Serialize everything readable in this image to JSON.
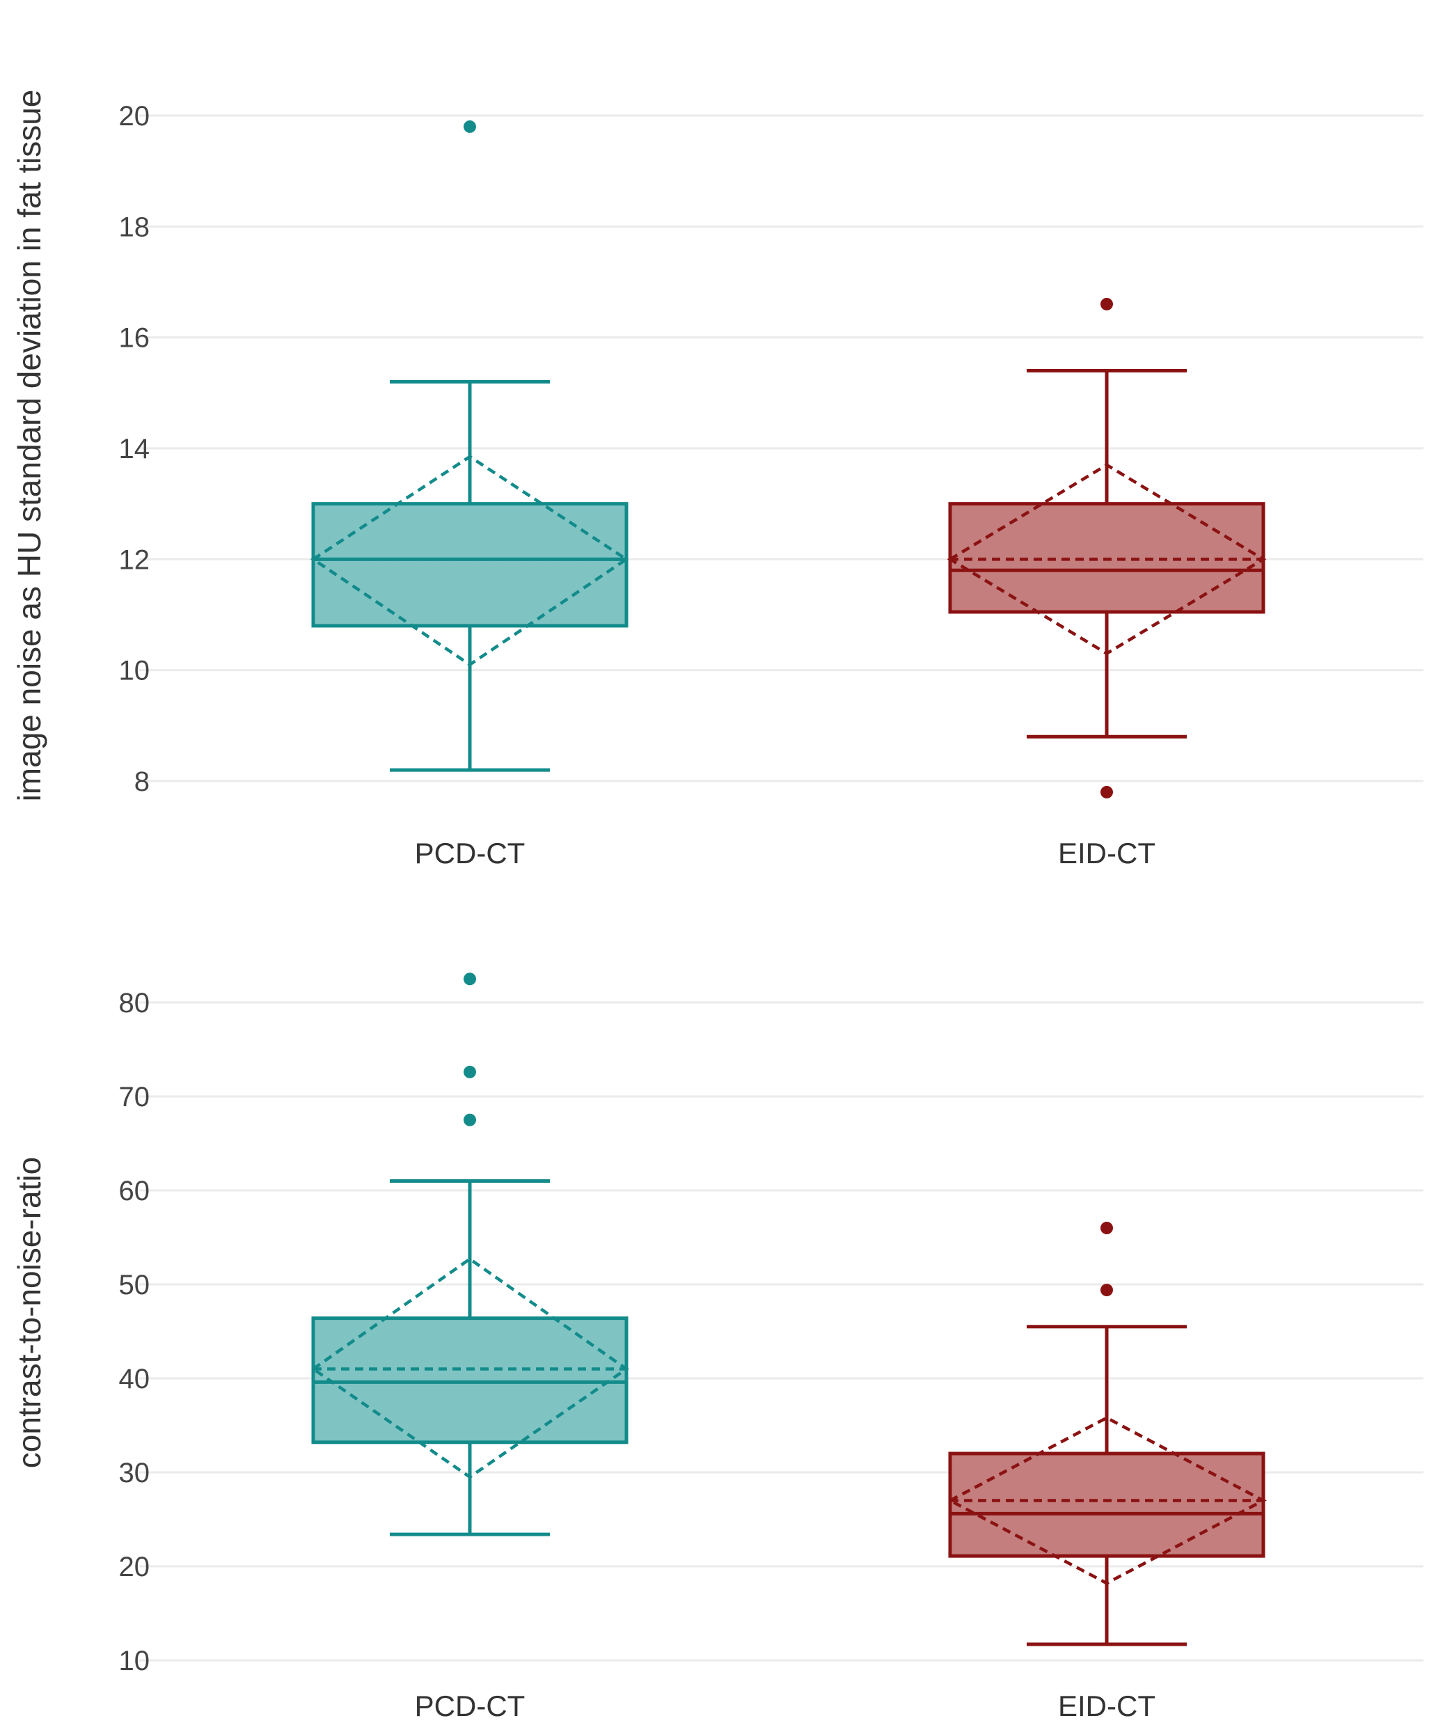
{
  "chart_data": [
    {
      "type": "box",
      "ylabel": "image noise as HU standard deviation in fat tissue",
      "ylim": [
        7.6,
        20.5
      ],
      "yticks": [
        8,
        10,
        12,
        14,
        16,
        18,
        20
      ],
      "categories": [
        "PCD-CT",
        "EID-CT"
      ],
      "series": [
        {
          "name": "PCD-CT",
          "color": "#138b8b",
          "fill": "#7fc4c3",
          "whisker_low": 8.2,
          "q1": 10.8,
          "median": 12.0,
          "q3": 13.0,
          "whisker_high": 15.2,
          "mean": 12.0,
          "sd_low": 10.1,
          "sd_high": 13.85,
          "outliers": [
            19.8
          ]
        },
        {
          "name": "EID-CT",
          "color": "#8b1212",
          "fill": "#c47e7e",
          "whisker_low": 8.8,
          "q1": 11.05,
          "median": 11.8,
          "q3": 13.0,
          "whisker_high": 15.4,
          "mean": 12.0,
          "sd_low": 10.3,
          "sd_high": 13.7,
          "outliers": [
            16.6,
            7.8
          ]
        }
      ]
    },
    {
      "type": "box",
      "ylabel": "contrast-to-noise-ratio",
      "ylim": [
        9,
        85
      ],
      "yticks": [
        10,
        20,
        30,
        40,
        50,
        60,
        70,
        80
      ],
      "categories": [
        "PCD-CT",
        "EID-CT"
      ],
      "series": [
        {
          "name": "PCD-CT",
          "color": "#138b8b",
          "fill": "#7fc4c3",
          "whisker_low": 23.4,
          "q1": 33.2,
          "median": 39.6,
          "q3": 46.4,
          "whisker_high": 61.0,
          "mean": 41.0,
          "sd_low": 29.5,
          "sd_high": 52.7,
          "outliers": [
            82.5,
            72.6,
            67.5
          ]
        },
        {
          "name": "EID-CT",
          "color": "#8b1212",
          "fill": "#c47e7e",
          "whisker_low": 11.7,
          "q1": 21.1,
          "median": 25.6,
          "q3": 32.0,
          "whisker_high": 45.5,
          "mean": 27.0,
          "sd_low": 18.2,
          "sd_high": 35.8,
          "outliers": [
            56.0,
            49.4
          ]
        }
      ]
    }
  ]
}
